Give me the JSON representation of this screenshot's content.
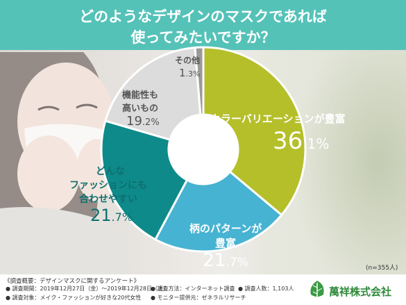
{
  "header": {
    "title_line1": "どのようなデザインのマスクであれば",
    "title_line2": "使ってみたいですか？"
  },
  "sample_note": "(n=355人)",
  "chart_data": {
    "type": "pie",
    "donut": true,
    "categories": [
      "カラーバリエーションが豊富",
      "柄のパターンが豊富",
      "どんなファッションにも合わせやすい",
      "機能性も高いもの",
      "その他"
    ],
    "values": [
      36.1,
      21.7,
      21.7,
      19.2,
      1.3
    ],
    "unit": "%",
    "colors": [
      "#b5bf2a",
      "#47b3d2",
      "#0e8a8a",
      "#dcdcdc",
      "#9a9a9a"
    ]
  },
  "labels": {
    "color_variation": {
      "line1": "カラーバリエーションが豊富",
      "pct_int": "36",
      "pct_dec": ".1",
      "pct_sign": "%"
    },
    "pattern": {
      "line1": "柄のパターンが",
      "line2": "豊富",
      "pct_int": "21",
      "pct_dec": ".7",
      "pct_sign": "%"
    },
    "fashion": {
      "line1": "どんな",
      "line2": "ファッションにも",
      "line3": "合わせやすい",
      "pct_int": "21",
      "pct_dec": ".7",
      "pct_sign": "%"
    },
    "functional": {
      "line1": "機能性も",
      "line2": "高いもの",
      "pct_int": "19",
      "pct_dec": ".2",
      "pct_sign": "%"
    },
    "other": {
      "line1": "その他",
      "pct_int": "1",
      "pct_dec": ".3",
      "pct_sign": "%"
    }
  },
  "footer": {
    "summary": "《調査概要：デザインマスクに関するアンケート》",
    "period": "● 調査期間：2019年12月27日（金）～2019年12月28日（土）",
    "method": "● 調査方法：インターネット調査",
    "count": "● 調査人数：1,103人",
    "target": "● 調査対象：メイク・ファッションが好きな20代女性",
    "provider": "● モニター提供元：ゼネラルリサーチ",
    "company": "萬祥株式会社"
  },
  "colors": {
    "header_bg": "#55c2b8",
    "olive": "#b5bf2a",
    "sky": "#47b3d2",
    "teal": "#0e8a8a",
    "gray_text": "#666666",
    "logo_green": "#2f8a3a"
  }
}
